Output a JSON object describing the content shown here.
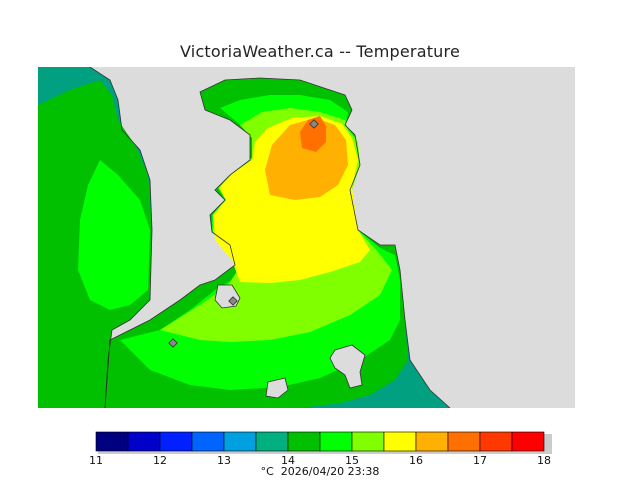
{
  "header": {
    "title": "VictoriaWeather.ca -- Temperature"
  },
  "legend": {
    "unit": "°C",
    "ticks": [
      "11",
      "12",
      "13",
      "14",
      "15",
      "16",
      "17",
      "18"
    ],
    "colors": [
      "#000080",
      "#0000c8",
      "#0020ff",
      "#0064ff",
      "#00a0e0",
      "#00b080",
      "#00c000",
      "#00ff00",
      "#80ff00",
      "#ffff00",
      "#ffb000",
      "#ff7000",
      "#ff3800",
      "#ff0000"
    ],
    "timestamp": "2026/04/20 23:38"
  },
  "map": {
    "land_color": "#dcdcdc",
    "contour_colors": {
      "t14": "#00a080",
      "t14_5": "#00c000",
      "t15": "#00ff00",
      "t15_5": "#80ff00",
      "t16": "#ffff00",
      "t16_5": "#ffb000",
      "t17": "#ff7000"
    }
  }
}
